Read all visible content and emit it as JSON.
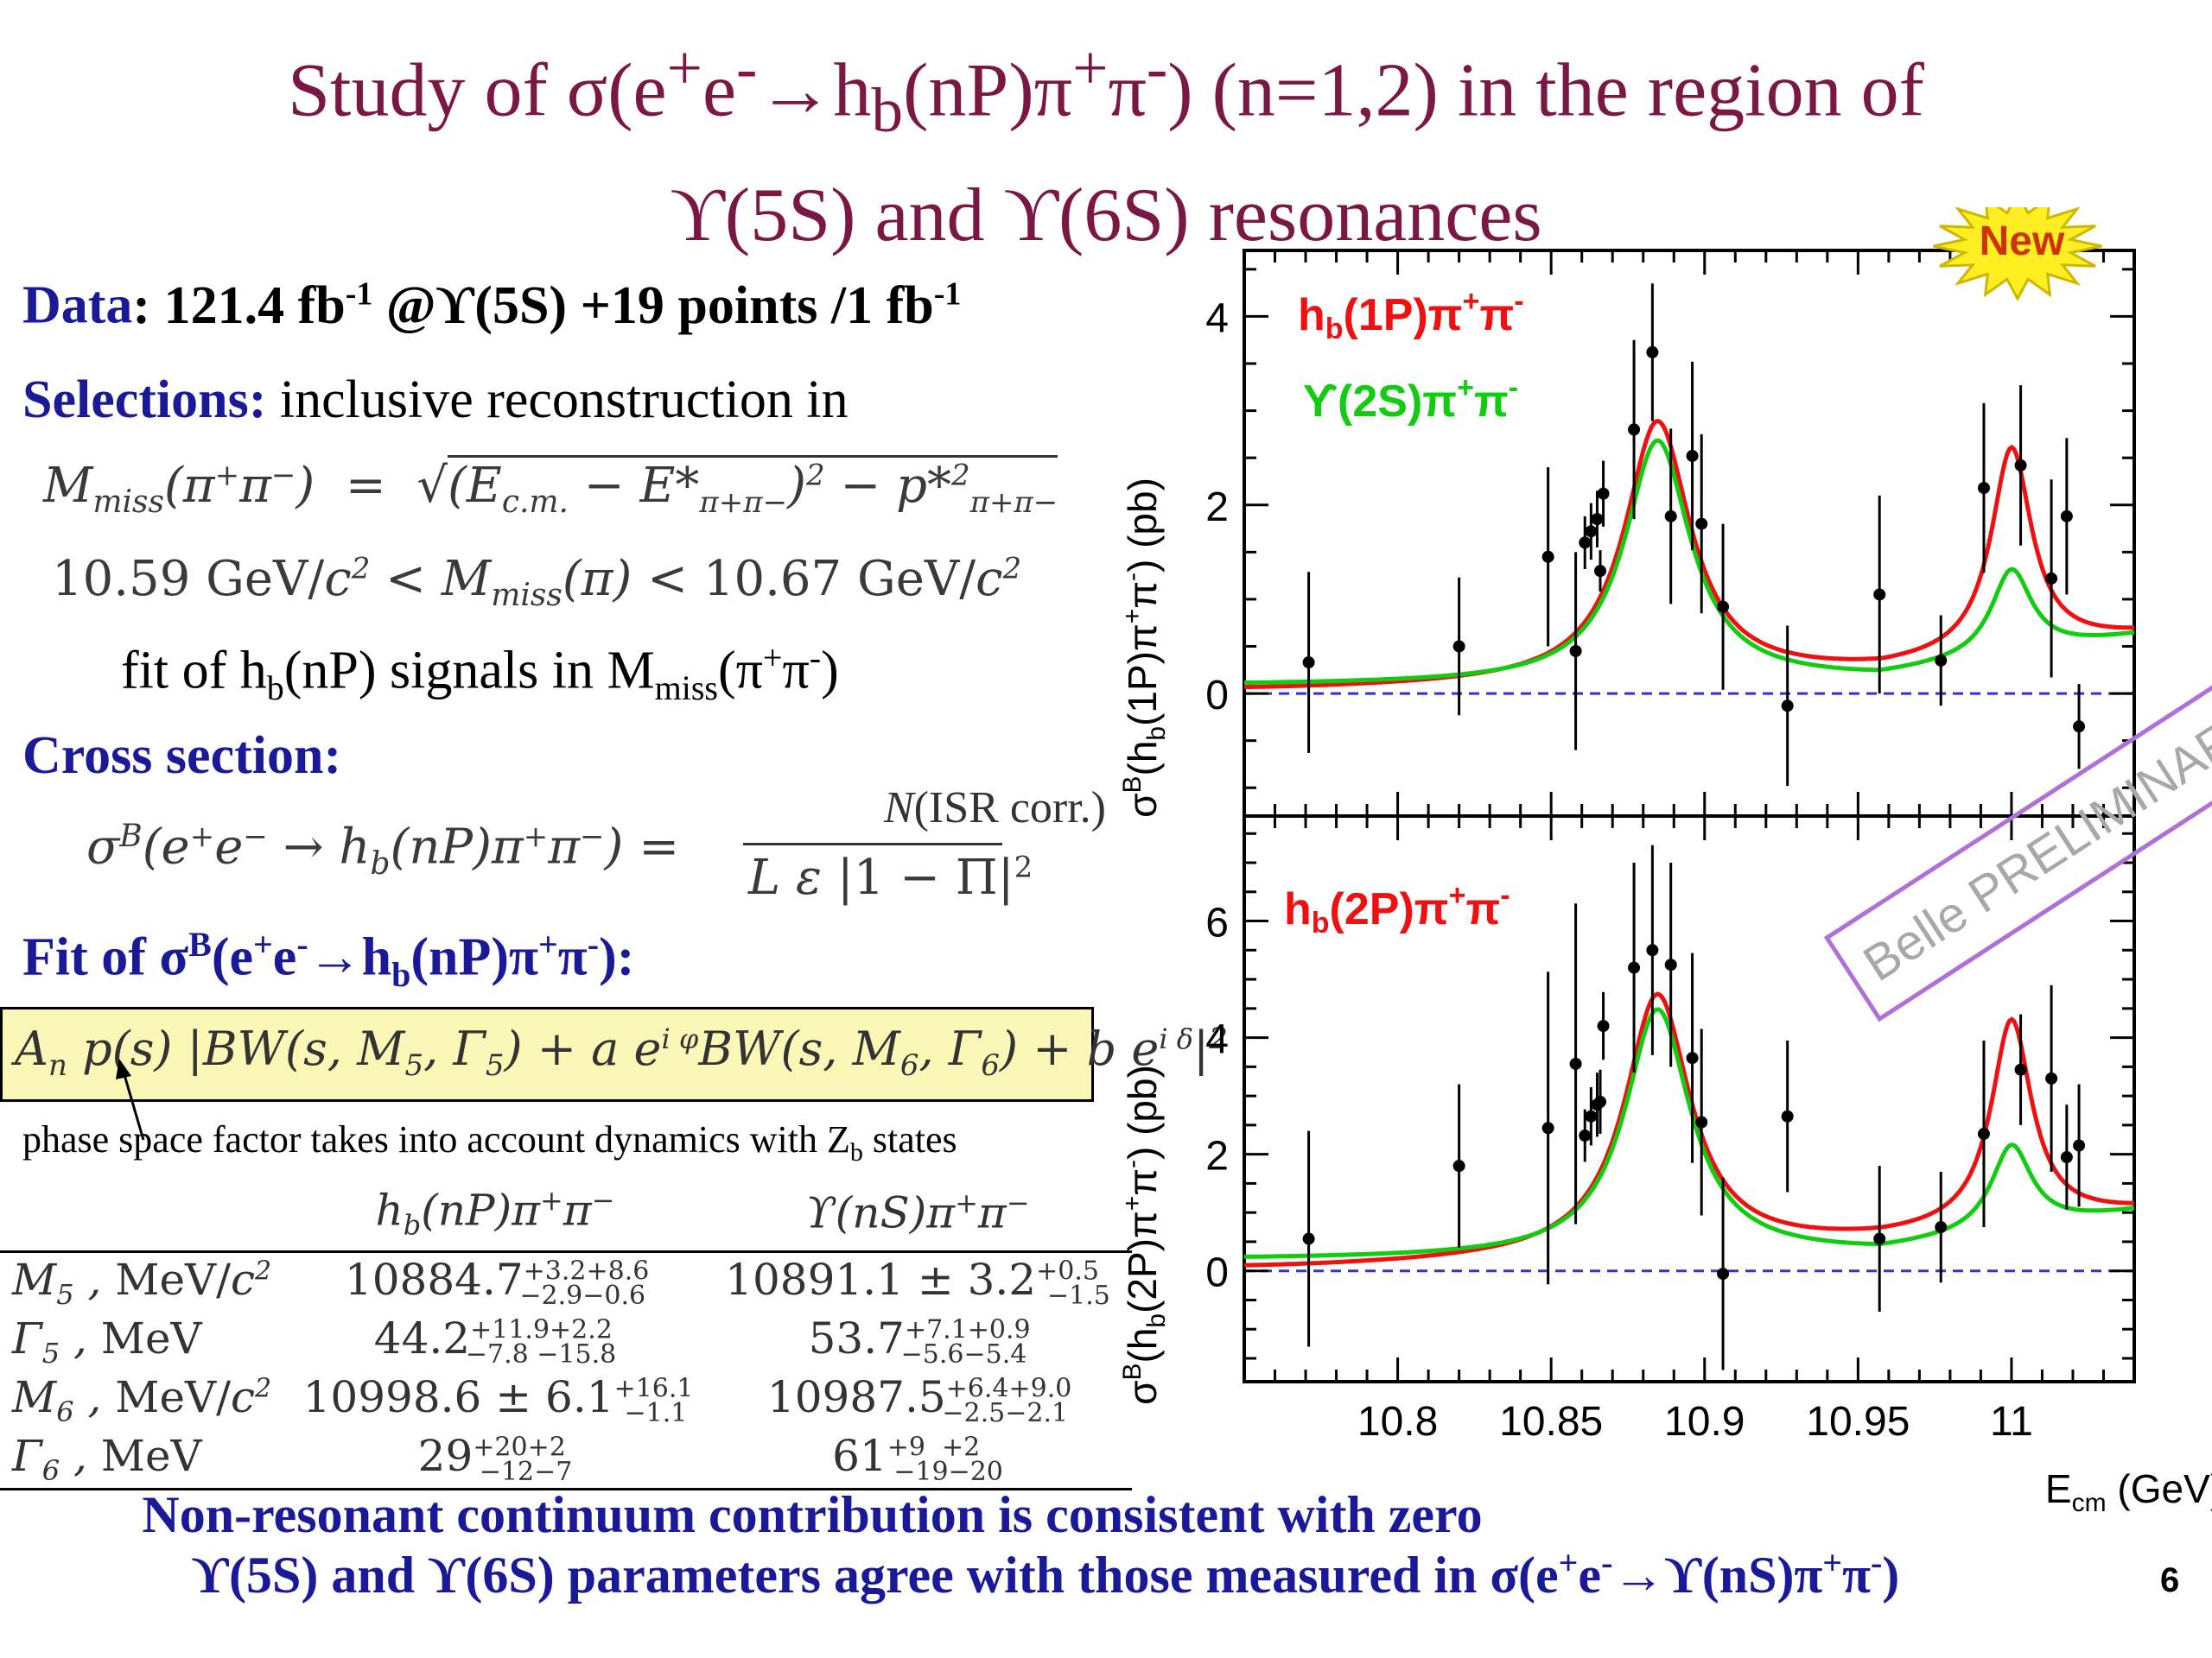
{
  "title": {
    "line1": "Study of σ(e⁺e⁻→h_b(nP)π⁺π⁻) (n=1,2) in the region of",
    "line2": "ϒ(5S) and ϒ(6S) resonances"
  },
  "data_line": {
    "label": "Data",
    "text": ": 121.4 fb⁻¹ @ϒ(5S) +19 points /1 fb⁻¹"
  },
  "selections": {
    "label": "Selections:",
    "text": "inclusive reconstruction in",
    "formula1": "M_miss(π⁺π⁻) = √((E_c.m. − E*_π⁺π⁻)² − p*²_π⁺π⁻)",
    "formula2": "10.59 GeV/c² < M_miss(π) < 10.67 GeV/c²",
    "fit_text": "fit of h_b(nP) signals in M_miss(π⁺π⁻)"
  },
  "cross_section": {
    "label": "Cross section:",
    "lhs": "σ^B(e⁺e⁻ → h_b(nP)π⁺π⁻) =",
    "numerator": "N(ISR corr.)",
    "denominator": "L ε |1 − Π|²"
  },
  "fit": {
    "label": "Fit of σ^B(e⁺e⁻→h_b(nP)π⁺π⁻):",
    "formula": "A_n p(s) |BW(s, M₅, Γ₅) + a e^{iφ} BW(s, M₆, Γ₆) + b e^{iδ}|²",
    "note": "phase space factor takes into account dynamics with Z_b states"
  },
  "table": {
    "headers": [
      "",
      "h_b(nP)π⁺π⁻",
      "ϒ(nS)π⁺π⁻"
    ],
    "rows": [
      [
        "M₅ , MeV/c²",
        "10884.7 +3.2+8.6 −2.9−0.6",
        "10891.1 ± 3.2 +0.5 −1.5"
      ],
      [
        "Γ₅ , MeV",
        "44.2 +11.9+2.2 −7.8 −15.8",
        "53.7 +7.1+0.9 −5.6−5.4"
      ],
      [
        "M₆ , MeV/c²",
        "10998.6 ± 6.1 +16.1 −1.1",
        "10987.5 +6.4+9.0 −2.5−2.1"
      ],
      [
        "Γ₆ , MeV",
        "29 +20+2 −12−7",
        "61 +9 +2 −19−20"
      ]
    ]
  },
  "bottom": {
    "line1": "Non-resonant  continuum contribution is consistent with zero",
    "line2": "ϒ(5S) and ϒ(6S) parameters agree with those measured in σ(e⁺e⁻→ϒ(nS)π⁺π⁻)"
  },
  "page_number": "6",
  "badge": "New",
  "watermark": "Belle PRELIMINARY",
  "colors": {
    "title": "#7a1843",
    "navy": "#1a1a99",
    "red": "#ee1111",
    "green": "#11cc11",
    "dash": "#3333cc",
    "badge": "#ffee22",
    "watermark": "#b070d8",
    "box": "#fbf7b6"
  },
  "chart_data": [
    {
      "type": "scatter",
      "title": "",
      "xlabel": "E_cm (GeV)",
      "ylabel": "σ^B(h_b(1P)π⁺π⁻) (pb)",
      "xlim": [
        10.75,
        11.04
      ],
      "ylim": [
        -1.3,
        4.7
      ],
      "xticks": [
        "10.8",
        "10.85",
        "10.9",
        "10.95",
        "11"
      ],
      "yticks": [
        "0",
        "2",
        "4"
      ],
      "legend": [
        {
          "name": "h_b(1P)π⁺π⁻",
          "color": "#ee1111"
        },
        {
          "name": "ϒ(2S)π⁺π⁻",
          "color": "#11cc11"
        }
      ],
      "points": [
        {
          "x": 10.771,
          "y": 0.33,
          "err": 0.96
        },
        {
          "x": 10.82,
          "y": 0.5,
          "err": 0.73
        },
        {
          "x": 10.849,
          "y": 1.45,
          "err": 0.95
        },
        {
          "x": 10.858,
          "y": 0.45,
          "err": 1.05
        },
        {
          "x": 10.861,
          "y": 1.6,
          "err": 0.28
        },
        {
          "x": 10.863,
          "y": 1.72,
          "err": 0.3
        },
        {
          "x": 10.865,
          "y": 1.85,
          "err": 0.3
        },
        {
          "x": 10.866,
          "y": 1.3,
          "err": 0.22
        },
        {
          "x": 10.867,
          "y": 2.12,
          "err": 0.35
        },
        {
          "x": 10.877,
          "y": 2.8,
          "err": 0.95
        },
        {
          "x": 10.883,
          "y": 3.62,
          "err": 0.73
        },
        {
          "x": 10.889,
          "y": 1.88,
          "err": 0.93
        },
        {
          "x": 10.896,
          "y": 2.52,
          "err": 1.0
        },
        {
          "x": 10.899,
          "y": 1.8,
          "err": 0.95
        },
        {
          "x": 10.906,
          "y": 0.92,
          "err": 0.88
        },
        {
          "x": 10.927,
          "y": -0.13,
          "err": 0.85
        },
        {
          "x": 10.957,
          "y": 1.05,
          "err": 1.05
        },
        {
          "x": 10.977,
          "y": 0.35,
          "err": 0.48
        },
        {
          "x": 10.991,
          "y": 2.18,
          "err": 0.9
        },
        {
          "x": 11.003,
          "y": 2.42,
          "err": 0.85
        },
        {
          "x": 11.013,
          "y": 1.22,
          "err": 1.05
        },
        {
          "x": 11.018,
          "y": 1.88,
          "err": 0.83
        },
        {
          "x": 11.022,
          "y": -0.35,
          "err": 0.45
        }
      ],
      "curves": [
        {
          "name": "h_b(1P)π⁺π⁻ fit",
          "color": "#ee1111",
          "peak1": 10.8847,
          "peak1_height": 2.88,
          "peak2": 11.0,
          "peak2_height": 2.43,
          "min_at": 10.958,
          "min_y": 0.22,
          "y_left": 0.04,
          "y_right": 0.6
        },
        {
          "name": "ϒ(2S)π⁺π⁻ fit",
          "color": "#11cc11",
          "peak1": 10.8847,
          "peak1_height": 2.68,
          "peak2": 11.0,
          "peak2_height": 1.07,
          "min_at": 10.957,
          "min_y": 0.14,
          "y_left": 0.09,
          "y_right": 0.6
        }
      ]
    },
    {
      "type": "scatter",
      "title": "",
      "xlabel": "E_cm (GeV)",
      "ylabel": "σ^B(h_b(2P)π⁺π⁻) (pb)",
      "xlim": [
        10.75,
        11.04
      ],
      "ylim": [
        -1.9,
        7.8
      ],
      "xticks": [
        "10.8",
        "10.85",
        "10.9",
        "10.95",
        "11"
      ],
      "yticks": [
        "0",
        "2",
        "4",
        "6"
      ],
      "legend": [
        {
          "name": "h_b(2P)π⁺π⁻",
          "color": "#ee1111"
        }
      ],
      "points": [
        {
          "x": 10.771,
          "y": 0.55,
          "err": 1.85
        },
        {
          "x": 10.82,
          "y": 1.8,
          "err": 1.4
        },
        {
          "x": 10.849,
          "y": 2.45,
          "err": 2.68
        },
        {
          "x": 10.858,
          "y": 3.55,
          "err": 2.75
        },
        {
          "x": 10.861,
          "y": 2.32,
          "err": 0.45
        },
        {
          "x": 10.863,
          "y": 2.65,
          "err": 0.5
        },
        {
          "x": 10.865,
          "y": 2.85,
          "err": 0.55
        },
        {
          "x": 10.866,
          "y": 2.9,
          "err": 0.55
        },
        {
          "x": 10.867,
          "y": 4.2,
          "err": 0.58
        },
        {
          "x": 10.877,
          "y": 5.2,
          "err": 1.8
        },
        {
          "x": 10.883,
          "y": 5.5,
          "err": 1.8
        },
        {
          "x": 10.889,
          "y": 5.25,
          "err": 1.75
        },
        {
          "x": 10.896,
          "y": 3.65,
          "err": 1.8
        },
        {
          "x": 10.899,
          "y": 2.55,
          "err": 1.6
        },
        {
          "x": 10.906,
          "y": -0.05,
          "err": 1.65
        },
        {
          "x": 10.927,
          "y": 2.65,
          "err": 1.3
        },
        {
          "x": 10.957,
          "y": 0.55,
          "err": 1.25
        },
        {
          "x": 10.977,
          "y": 0.75,
          "err": 0.95
        },
        {
          "x": 10.991,
          "y": 2.35,
          "err": 1.6
        },
        {
          "x": 11.003,
          "y": 3.45,
          "err": 0.95
        },
        {
          "x": 11.013,
          "y": 3.3,
          "err": 1.6
        },
        {
          "x": 11.018,
          "y": 1.95,
          "err": 0.9
        },
        {
          "x": 11.022,
          "y": 2.15,
          "err": 1.05
        }
      ],
      "curves": [
        {
          "name": "h_b(2P)π⁺π⁻ fit",
          "color": "#ee1111",
          "peak1": 10.8847,
          "peak1_height": 4.73,
          "peak2": 11.0,
          "peak2_height": 4.08,
          "min_at": 10.958,
          "min_y": 0.5,
          "y_left": 0.05,
          "y_right": 1.0
        },
        {
          "name": "ϒ(nS)π⁺π⁻ fit",
          "color": "#11cc11",
          "peak1": 10.8847,
          "peak1_height": 4.48,
          "peak2": 11.0,
          "peak2_height": 1.77,
          "min_at": 10.957,
          "min_y": 0.28,
          "y_left": 0.2,
          "y_right": 1.0
        }
      ]
    }
  ]
}
